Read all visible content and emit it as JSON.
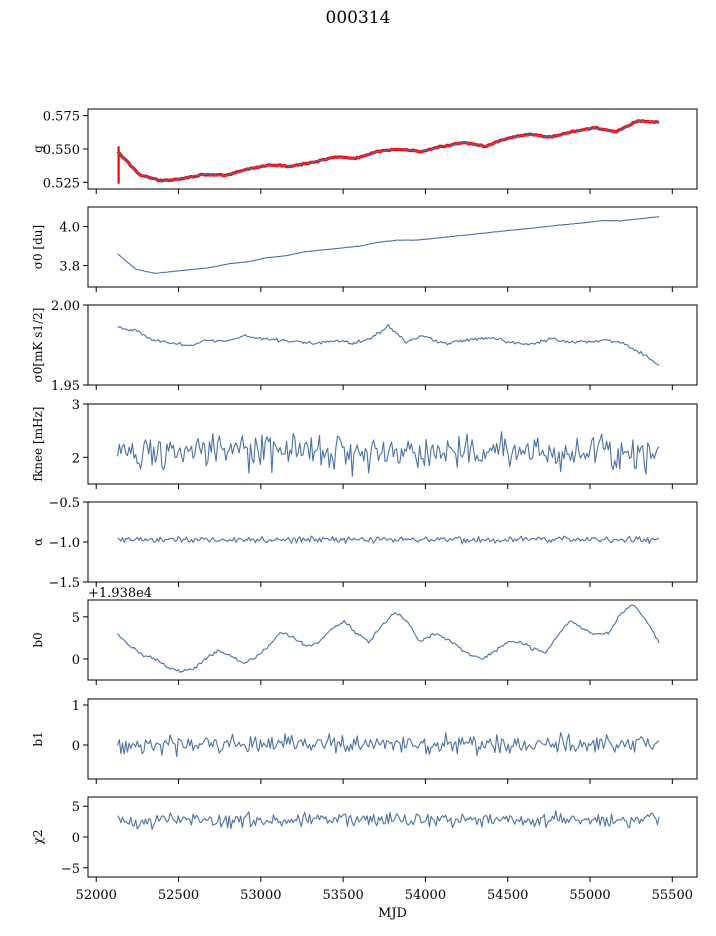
{
  "figure": {
    "title": "000314",
    "xlabel": "MJD",
    "x_ticks": [
      52000,
      52500,
      53000,
      53500,
      54000,
      54500,
      55000,
      55500
    ],
    "x_tick_labels": [
      "52000",
      "52500",
      "53000",
      "53500",
      "54000",
      "54500",
      "55000",
      "55500"
    ]
  },
  "colors": {
    "series": "#4c72a4",
    "overlay": "#ff0000"
  },
  "chart_data": [
    {
      "type": "line",
      "panel": "g",
      "ylabel": "g",
      "xlim": [
        51950,
        55650
      ],
      "ylim": [
        0.52,
        0.58
      ],
      "yticks": [
        0.525,
        0.55,
        0.575
      ],
      "ytick_labels": [
        "0.525",
        "0.550",
        "0.575"
      ],
      "x_range": [
        52130,
        55420
      ],
      "series": [
        {
          "color": "#ff0000",
          "style": "band",
          "values": [
            0.548,
            0.531,
            0.526,
            0.528,
            0.531,
            0.53,
            0.535,
            0.538,
            0.537,
            0.54,
            0.544,
            0.543,
            0.548,
            0.55,
            0.548,
            0.552,
            0.555,
            0.552,
            0.558,
            0.561,
            0.559,
            0.563,
            0.566,
            0.563,
            0.571,
            0.57
          ]
        },
        {
          "color": "#4c72a4",
          "style": "line",
          "values": [
            0.548,
            0.531,
            0.526,
            0.528,
            0.531,
            0.53,
            0.535,
            0.538,
            0.537,
            0.54,
            0.544,
            0.543,
            0.548,
            0.55,
            0.548,
            0.552,
            0.555,
            0.552,
            0.558,
            0.561,
            0.559,
            0.563,
            0.566,
            0.563,
            0.571,
            0.57
          ]
        }
      ]
    },
    {
      "type": "line",
      "panel": "sigma0",
      "ylabel": "σ0 [du]",
      "xlim": [
        51950,
        55650
      ],
      "ylim": [
        3.69,
        4.1
      ],
      "yticks": [
        3.8,
        4.0
      ],
      "ytick_labels": [
        "3.8",
        "4.0"
      ],
      "x_range": [
        52130,
        55420
      ],
      "series": [
        {
          "color": "#4c72a4",
          "values": [
            3.86,
            3.78,
            3.76,
            3.77,
            3.78,
            3.79,
            3.81,
            3.82,
            3.84,
            3.85,
            3.87,
            3.88,
            3.89,
            3.9,
            3.92,
            3.93,
            3.93,
            3.94,
            3.95,
            3.96,
            3.97,
            3.98,
            3.99,
            4.0,
            4.01,
            4.02,
            4.03,
            4.03,
            4.04,
            4.05
          ]
        }
      ]
    },
    {
      "type": "line",
      "panel": "sigma0-cal",
      "ylabel": "σ0[mK s1/2]",
      "xlim": [
        51950,
        55650
      ],
      "ylim": [
        1.95,
        2.0
      ],
      "yticks": [
        1.95,
        2.0
      ],
      "ytick_labels": [
        "1.95",
        "2.00"
      ],
      "x_range": [
        52130,
        55420
      ],
      "series": [
        {
          "color": "#4c72a4",
          "values": [
            1.9865,
            1.984,
            1.978,
            1.976,
            1.975,
            1.978,
            1.977,
            1.981,
            1.979,
            1.978,
            1.977,
            1.976,
            1.978,
            1.976,
            1.979,
            1.987,
            1.977,
            1.981,
            1.976,
            1.977,
            1.979,
            1.979,
            1.976,
            1.976,
            1.979,
            1.977,
            1.977,
            1.978,
            1.976,
            1.97,
            1.962
          ]
        }
      ]
    },
    {
      "type": "line",
      "panel": "fknee",
      "ylabel": "fknee [mHz]",
      "xlim": [
        51950,
        55650
      ],
      "ylim": [
        1.5,
        3.0
      ],
      "yticks": [
        2,
        3
      ],
      "ytick_labels": [
        "2",
        "3"
      ],
      "x_range": [
        52130,
        55420
      ],
      "series": [
        {
          "color": "#4c72a4",
          "mean": 2.1,
          "spread": 0.3
        }
      ]
    },
    {
      "type": "line",
      "panel": "alpha",
      "ylabel": "α",
      "xlim": [
        51950,
        55650
      ],
      "ylim": [
        -1.5,
        -0.5
      ],
      "yticks": [
        -1.5,
        -1.0,
        -0.5
      ],
      "ytick_labels": [
        "−1.5",
        "−1.0",
        "−0.5"
      ],
      "x_range": [
        52130,
        55420
      ],
      "series": [
        {
          "color": "#4c72a4",
          "mean": -0.97,
          "spread": 0.04
        }
      ]
    },
    {
      "type": "line",
      "panel": "b0",
      "ylabel": "b0",
      "offset_label": "+1.938e4",
      "xlim": [
        51950,
        55650
      ],
      "ylim": [
        -2.5,
        7
      ],
      "yticks": [
        0,
        5
      ],
      "ytick_labels": [
        "0",
        "5"
      ],
      "x_range": [
        52130,
        55420
      ],
      "series": [
        {
          "color": "#4c72a4",
          "values": [
            3.0,
            1.5,
            0.5,
            0.0,
            -1.0,
            -1.5,
            -1.2,
            0.0,
            1.0,
            0.3,
            -0.5,
            0.2,
            1.5,
            3.2,
            2.5,
            1.5,
            2.0,
            3.5,
            4.5,
            3.0,
            2.0,
            4.0,
            5.5,
            4.5,
            2.0,
            3.0,
            2.5,
            1.5,
            0.5,
            0.0,
            1.0,
            2.0,
            2.0,
            1.2,
            0.8,
            3.0,
            4.5,
            3.5,
            3.0,
            3.0,
            5.5,
            6.5,
            4.5,
            2.0
          ]
        }
      ]
    },
    {
      "type": "line",
      "panel": "b1",
      "ylabel": "b1",
      "xlim": [
        51950,
        55650
      ],
      "ylim": [
        -0.85,
        1.15
      ],
      "yticks": [
        0,
        1
      ],
      "ytick_labels": [
        "0",
        "1"
      ],
      "x_range": [
        52130,
        55420
      ],
      "series": [
        {
          "color": "#4c72a4",
          "mean": 0.02,
          "spread": 0.2
        }
      ]
    },
    {
      "type": "line",
      "panel": "chi2",
      "ylabel": "χ2",
      "xlim": [
        51950,
        55650
      ],
      "ylim": [
        -6.5,
        6.5
      ],
      "yticks": [
        -5,
        0,
        5
      ],
      "ytick_labels": [
        "−5",
        "0",
        "5"
      ],
      "x_range": [
        52130,
        55420
      ],
      "series": [
        {
          "color": "#4c72a4",
          "mean": 2.8,
          "spread": 1.1
        }
      ]
    }
  ]
}
